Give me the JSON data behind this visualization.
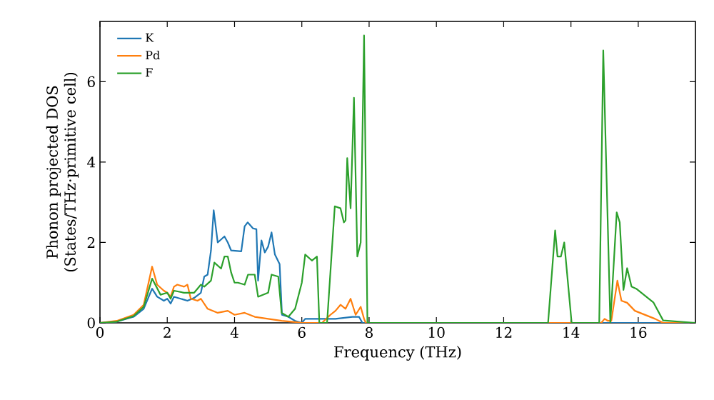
{
  "chart_data": {
    "type": "line",
    "xlabel": "Frequency (THz)",
    "ylabel": "Phonon projected DOS (States/THz·primitive cell)",
    "xlim": [
      0,
      17.7
    ],
    "ylim": [
      0,
      7.5
    ],
    "xticks": [
      0,
      2,
      4,
      6,
      8,
      10,
      12,
      14,
      16
    ],
    "yticks": [
      0,
      2,
      4,
      6
    ],
    "legend": "top left",
    "grid": false,
    "marker": "none",
    "line_style": "solid",
    "series": [
      {
        "name": "K",
        "color": "#1f77b4",
        "x": [
          0,
          0.5,
          1,
          1.3,
          1.55,
          1.7,
          1.9,
          2.0,
          2.1,
          2.2,
          2.4,
          2.6,
          2.8,
          3.0,
          3.1,
          3.2,
          3.3,
          3.38,
          3.5,
          3.7,
          3.8,
          3.9,
          4.2,
          4.3,
          4.39,
          4.55,
          4.65,
          4.7,
          4.8,
          4.9,
          5.0,
          5.1,
          5.2,
          5.34,
          5.41,
          5.6,
          5.8,
          6.0,
          6.1,
          6.5,
          7.0,
          7.5,
          7.7,
          7.8,
          17.7
        ],
        "values": [
          0,
          0.03,
          0.15,
          0.35,
          0.85,
          0.65,
          0.55,
          0.6,
          0.48,
          0.65,
          0.6,
          0.55,
          0.62,
          0.75,
          1.15,
          1.2,
          1.8,
          2.8,
          2.0,
          2.15,
          2.0,
          1.8,
          1.78,
          2.4,
          2.5,
          2.35,
          2.33,
          1.05,
          2.05,
          1.75,
          1.9,
          2.25,
          1.7,
          1.46,
          0.2,
          0.15,
          0.05,
          0,
          0.1,
          0.1,
          0.1,
          0.15,
          0.15,
          0,
          0
        ]
      },
      {
        "name": "Pd",
        "color": "#ff7f0e",
        "x": [
          0,
          0.5,
          1,
          1.3,
          1.55,
          1.7,
          1.9,
          2.0,
          2.1,
          2.2,
          2.3,
          2.5,
          2.6,
          2.7,
          2.9,
          3.0,
          3.2,
          3.5,
          3.8,
          4.0,
          4.3,
          4.6,
          5.0,
          5.4,
          5.8,
          6.0,
          6.6,
          6.85,
          7.0,
          7.15,
          7.3,
          7.45,
          7.6,
          7.75,
          7.85,
          7.9,
          14.9,
          15.0,
          15.1,
          15.2,
          15.38,
          15.5,
          15.67,
          15.9,
          16.5,
          16.74,
          17.7
        ],
        "values": [
          0,
          0.05,
          0.2,
          0.45,
          1.4,
          0.95,
          0.8,
          0.75,
          0.65,
          0.9,
          0.95,
          0.9,
          0.95,
          0.6,
          0.55,
          0.6,
          0.35,
          0.25,
          0.3,
          0.2,
          0.25,
          0.15,
          0.1,
          0.05,
          0.02,
          0,
          0,
          0.2,
          0.3,
          0.45,
          0.35,
          0.6,
          0.2,
          0.4,
          0.1,
          0,
          0,
          0.1,
          0.05,
          0.05,
          1.05,
          0.55,
          0.5,
          0.3,
          0.1,
          0,
          0
        ]
      },
      {
        "name": "F",
        "color": "#2ca02c",
        "x": [
          0,
          0.5,
          1,
          1.3,
          1.55,
          1.8,
          2.0,
          2.1,
          2.2,
          2.5,
          2.8,
          3.0,
          3.1,
          3.3,
          3.4,
          3.6,
          3.7,
          3.8,
          3.9,
          4.0,
          4.1,
          4.3,
          4.4,
          4.6,
          4.7,
          4.85,
          5.0,
          5.1,
          5.3,
          5.4,
          5.6,
          5.8,
          6.0,
          6.1,
          6.3,
          6.45,
          6.52,
          6.75,
          6.98,
          7.15,
          7.25,
          7.3,
          7.35,
          7.45,
          7.55,
          7.65,
          7.75,
          7.85,
          7.95,
          13.32,
          13.53,
          13.6,
          13.7,
          13.8,
          14.02,
          14.84,
          14.96,
          15.17,
          15.36,
          15.45,
          15.56,
          15.67,
          15.8,
          15.94,
          16.45,
          16.74,
          17.7
        ],
        "values": [
          0,
          0.03,
          0.17,
          0.4,
          1.1,
          0.7,
          0.75,
          0.6,
          0.8,
          0.75,
          0.75,
          0.95,
          0.9,
          1.05,
          1.5,
          1.35,
          1.65,
          1.65,
          1.25,
          1.0,
          1.0,
          0.95,
          1.2,
          1.2,
          0.65,
          0.7,
          0.75,
          1.2,
          1.15,
          0.25,
          0.15,
          0.35,
          1.0,
          1.7,
          1.55,
          1.65,
          0,
          0,
          2.9,
          2.85,
          2.5,
          2.55,
          4.1,
          2.85,
          5.6,
          1.65,
          2.0,
          7.15,
          0,
          0,
          2.3,
          1.65,
          1.65,
          2.0,
          0,
          0,
          6.78,
          0,
          2.75,
          2.5,
          0.82,
          1.36,
          0.9,
          0.85,
          0.51,
          0.06,
          0
        ]
      }
    ]
  }
}
